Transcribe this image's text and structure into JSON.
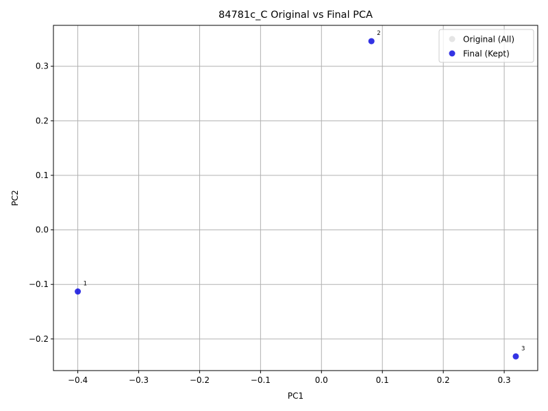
{
  "chart_data": {
    "type": "scatter",
    "title": "84781c_C Original vs Final PCA",
    "xlabel": "PC1",
    "ylabel": "PC2",
    "xlim": [
      -0.44,
      0.355
    ],
    "ylim": [
      -0.258,
      0.375
    ],
    "xticks": [
      -0.4,
      -0.3,
      -0.2,
      -0.1,
      0.0,
      0.1,
      0.2,
      0.3
    ],
    "xtick_labels": [
      "−0.4",
      "−0.3",
      "−0.2",
      "−0.1",
      "0.0",
      "0.1",
      "0.2",
      "0.3"
    ],
    "yticks": [
      -0.2,
      -0.1,
      0.0,
      0.1,
      0.2,
      0.3
    ],
    "ytick_labels": [
      "−0.2",
      "−0.1",
      "0.0",
      "0.1",
      "0.2",
      "0.3"
    ],
    "grid": true,
    "legend_position": "top-right",
    "series": [
      {
        "name": "Original (All)",
        "color": "#d3d3d3",
        "points": []
      },
      {
        "name": "Final (Kept)",
        "color": "#0000dd",
        "points": [
          {
            "x": -0.4,
            "y": -0.113,
            "label": "1"
          },
          {
            "x": 0.082,
            "y": 0.346,
            "label": "2"
          },
          {
            "x": 0.319,
            "y": -0.232,
            "label": "3"
          }
        ]
      }
    ]
  }
}
